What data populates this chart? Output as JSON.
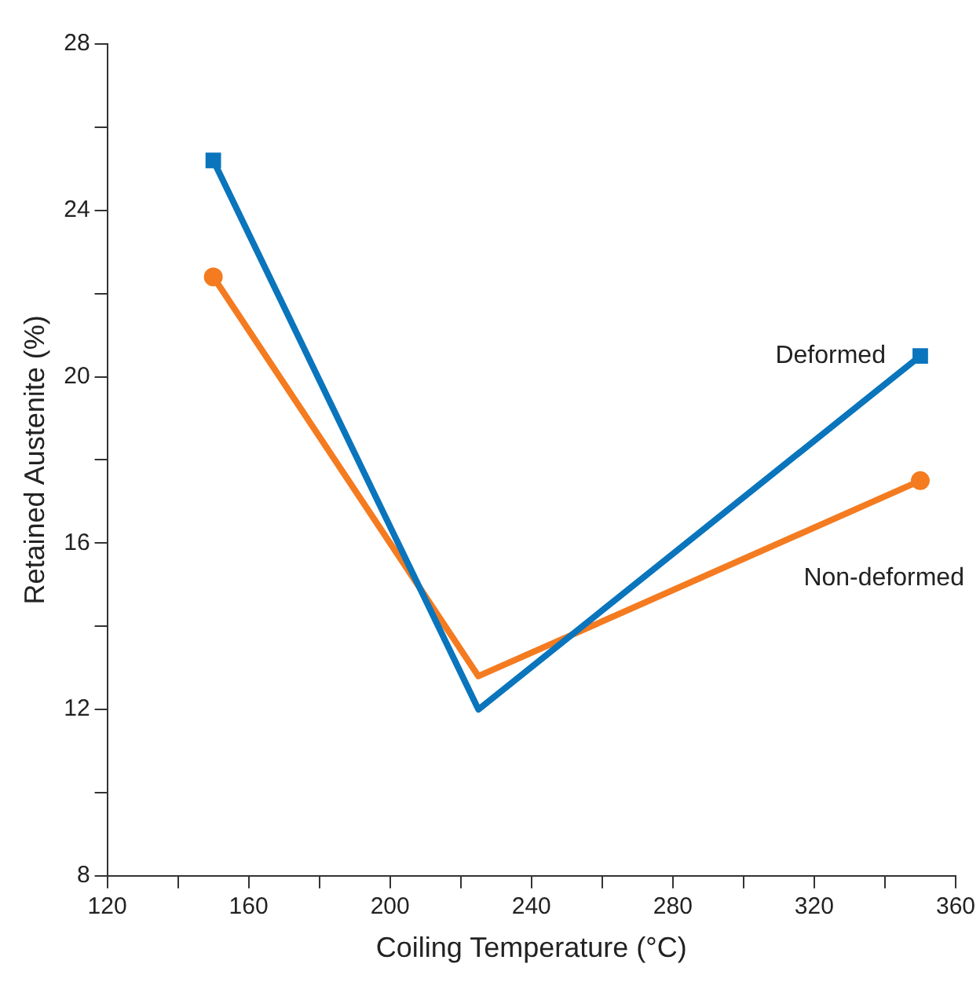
{
  "chart_data": {
    "type": "line",
    "xlabel": "Coiling Temperature (°C)",
    "ylabel": "Retained Austenite (%)",
    "x": [
      150,
      225,
      350
    ],
    "series": [
      {
        "name": "Deformed",
        "color": "#0a75bc",
        "marker": "square",
        "values": [
          25.2,
          12.0,
          20.5
        ]
      },
      {
        "name": "Non-deformed",
        "color": "#f47b20",
        "marker": "circle",
        "values": [
          22.4,
          12.8,
          17.5
        ]
      }
    ],
    "xlim": [
      120,
      360
    ],
    "xticks": [
      120,
      {
        "value": 140,
        "label": null
      },
      160,
      {
        "value": 180,
        "label": null
      },
      200,
      {
        "value": 220,
        "label": null
      },
      240,
      {
        "value": 260,
        "label": null
      },
      280,
      {
        "value": 300,
        "label": null
      },
      320,
      {
        "value": 340,
        "label": null
      },
      360
    ],
    "ylim": [
      8,
      28
    ],
    "yticks": [
      8,
      {
        "value": 10,
        "label": null
      },
      12,
      {
        "value": 14,
        "label": null
      },
      16,
      {
        "value": 18,
        "label": null
      },
      20,
      {
        "value": 22,
        "label": null
      },
      24,
      {
        "value": 26,
        "label": null
      },
      28
    ],
    "grid": false,
    "legend": false
  }
}
